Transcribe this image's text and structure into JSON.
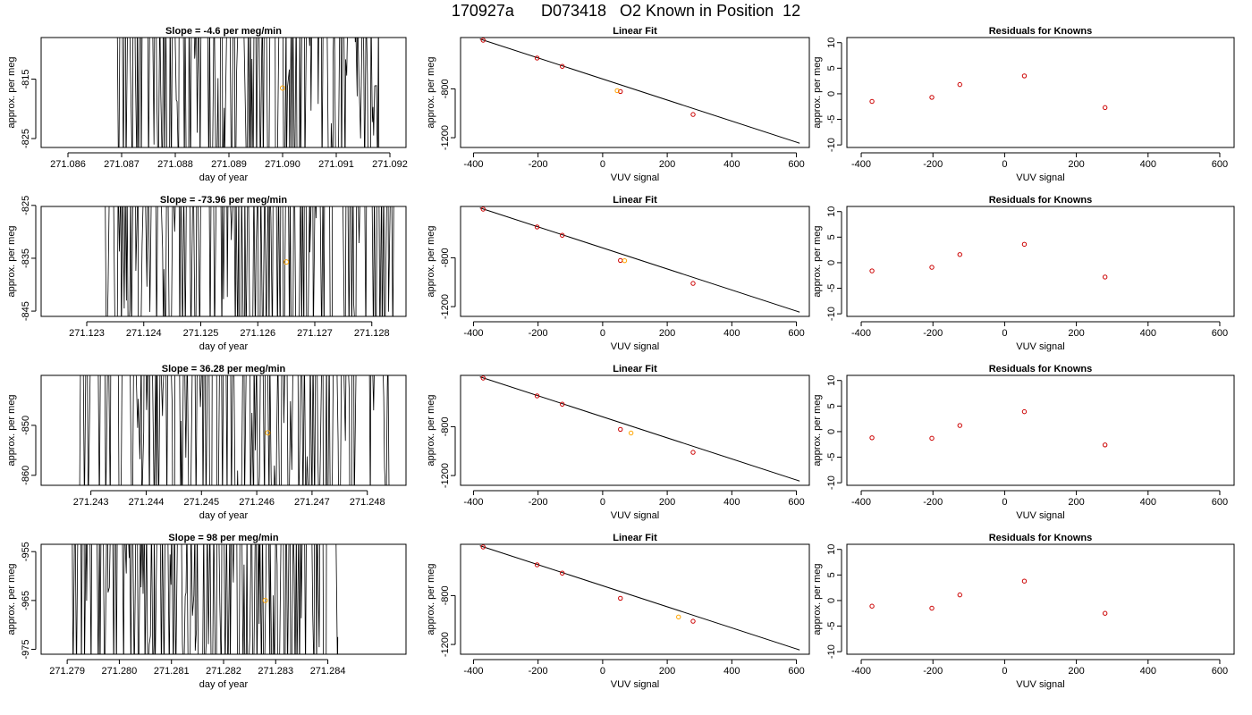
{
  "page_title": "170927a      D073418   O2 Known in Position  12",
  "chart_data": [
    {
      "type": "line",
      "title": "Slope =  -4.6  per meg/min",
      "xlabel": "day of year",
      "ylabel": "approx. per meg",
      "xlim": [
        271.0855,
        271.0923
      ],
      "ylim": [
        -826.5,
        -808
      ],
      "xticks": [
        271.086,
        271.087,
        271.088,
        271.089,
        271.09,
        271.091,
        271.092
      ],
      "xtick_labels": [
        "271.086",
        "271.087",
        "271.088",
        "271.089",
        "271.090",
        "271.091",
        "271.092"
      ],
      "yticks": [
        -815,
        -825
      ],
      "ytick_labels": [
        "-815",
        "-825"
      ],
      "trace_xrange": [
        271.0869,
        271.0918
      ],
      "trace_seed": 11,
      "marker": {
        "x": 271.09,
        "y": -816.5
      },
      "axes_color": "#000000",
      "line_color": "#000000",
      "marker_color": "#ffa500"
    },
    {
      "type": "scatter",
      "title": "Linear Fit",
      "xlabel": "VUV signal",
      "ylabel": "approx. per meg",
      "xlim": [
        -440,
        640
      ],
      "ylim": [
        -1280,
        -380
      ],
      "xticks": [
        -400,
        -200,
        0,
        200,
        400,
        600
      ],
      "xtick_labels": [
        "-400",
        "-200",
        "0",
        "200",
        "400",
        "600"
      ],
      "yticks": [
        -800,
        -1200
      ],
      "ytick_labels": [
        "-800",
        "-1200"
      ],
      "fit_line": {
        "x": [
          -380,
          610
        ],
        "y": [
          -392,
          -1245
        ]
      },
      "points": {
        "x": [
          -370,
          -203,
          -125,
          55,
          280
        ],
        "y": [
          -402,
          -548,
          -616,
          -822,
          -1010
        ]
      },
      "marker": {
        "x": 45,
        "y": -815
      },
      "line_color": "#000000",
      "point_color": "#cc0000",
      "marker_color": "#ffa500"
    },
    {
      "type": "scatter",
      "title": "Residuals for Knowns",
      "xlabel": "VUV signal",
      "ylabel": "approx. per meg",
      "xlim": [
        -440,
        640
      ],
      "ylim": [
        -10.5,
        11
      ],
      "xticks": [
        -400,
        -200,
        0,
        200,
        400,
        600
      ],
      "xtick_labels": [
        "-400",
        "-200",
        "0",
        "200",
        "400",
        "600"
      ],
      "yticks": [
        10,
        5,
        0,
        -5,
        -10
      ],
      "ytick_labels": [
        "10",
        "5",
        "0",
        "-5",
        "-10"
      ],
      "points": {
        "x": [
          -370,
          -203,
          -125,
          55,
          280
        ],
        "y": [
          -1.5,
          -0.7,
          1.8,
          3.5,
          -2.7
        ]
      },
      "point_color": "#cc0000"
    },
    {
      "type": "line",
      "title": "Slope =  -73.96  per meg/min",
      "xlabel": "day of year",
      "ylabel": "approx. per meg",
      "xlim": [
        271.1222,
        271.1286
      ],
      "ylim": [
        -846,
        -825.2
      ],
      "xticks": [
        271.123,
        271.124,
        271.125,
        271.126,
        271.127,
        271.128
      ],
      "xtick_labels": [
        "271.123",
        "271.124",
        "271.125",
        "271.126",
        "271.127",
        "271.128"
      ],
      "yticks": [
        -825,
        -835,
        -845
      ],
      "ytick_labels": [
        "-825",
        "-835",
        "-845"
      ],
      "trace_xrange": [
        271.1233,
        271.1284
      ],
      "trace_seed": 23,
      "marker": {
        "x": 271.1265,
        "y": -835.7
      },
      "axes_color": "#000000",
      "line_color": "#000000",
      "marker_color": "#ffa500"
    },
    {
      "type": "scatter",
      "title": "Linear Fit",
      "xlabel": "VUV signal",
      "ylabel": "approx. per meg",
      "xlim": [
        -440,
        640
      ],
      "ylim": [
        -1280,
        -380
      ],
      "xticks": [
        -400,
        -200,
        0,
        200,
        400,
        600
      ],
      "xtick_labels": [
        "-400",
        "-200",
        "0",
        "200",
        "400",
        "600"
      ],
      "yticks": [
        -800,
        -1200
      ],
      "ytick_labels": [
        "-800",
        "-1200"
      ],
      "fit_line": {
        "x": [
          -380,
          610
        ],
        "y": [
          -392,
          -1245
        ]
      },
      "points": {
        "x": [
          -370,
          -203,
          -125,
          55,
          280
        ],
        "y": [
          -402,
          -548,
          -616,
          -822,
          -1010
        ]
      },
      "marker": {
        "x": 68,
        "y": -824
      },
      "line_color": "#000000",
      "point_color": "#cc0000",
      "marker_color": "#ffa500"
    },
    {
      "type": "scatter",
      "title": "Residuals for Knowns",
      "xlabel": "VUV signal",
      "ylabel": "approx. per meg",
      "xlim": [
        -440,
        640
      ],
      "ylim": [
        -10.5,
        11
      ],
      "xticks": [
        -400,
        -200,
        0,
        200,
        400,
        600
      ],
      "xtick_labels": [
        "-400",
        "-200",
        "0",
        "200",
        "400",
        "600"
      ],
      "yticks": [
        10,
        5,
        0,
        -5,
        -10
      ],
      "ytick_labels": [
        "10",
        "5",
        "0",
        "-5",
        "-10"
      ],
      "points": {
        "x": [
          -370,
          -203,
          -125,
          55,
          280
        ],
        "y": [
          -1.6,
          -0.9,
          1.6,
          3.6,
          -2.8
        ]
      },
      "point_color": "#cc0000"
    },
    {
      "type": "line",
      "title": "Slope =  36.28  per meg/min",
      "xlabel": "day of year",
      "ylabel": "approx. per meg",
      "xlim": [
        271.2421,
        271.2487
      ],
      "ylim": [
        -862,
        -840
      ],
      "xticks": [
        271.243,
        271.244,
        271.245,
        271.246,
        271.247,
        271.248
      ],
      "xtick_labels": [
        "271.243",
        "271.244",
        "271.245",
        "271.246",
        "271.247",
        "271.248"
      ],
      "yticks": [
        -850,
        -860
      ],
      "ytick_labels": [
        "-850",
        "-860"
      ],
      "trace_xrange": [
        271.2428,
        271.2484
      ],
      "trace_seed": 37,
      "marker": {
        "x": 271.2462,
        "y": -851.5
      },
      "axes_color": "#000000",
      "line_color": "#000000",
      "marker_color": "#ffa500"
    },
    {
      "type": "scatter",
      "title": "Linear Fit",
      "xlabel": "VUV signal",
      "ylabel": "approx. per meg",
      "xlim": [
        -440,
        640
      ],
      "ylim": [
        -1280,
        -380
      ],
      "xticks": [
        -400,
        -200,
        0,
        200,
        400,
        600
      ],
      "xtick_labels": [
        "-400",
        "-200",
        "0",
        "200",
        "400",
        "600"
      ],
      "yticks": [
        -800,
        -1200
      ],
      "ytick_labels": [
        "-800",
        "-1200"
      ],
      "fit_line": {
        "x": [
          -380,
          610
        ],
        "y": [
          -392,
          -1245
        ]
      },
      "points": {
        "x": [
          -370,
          -203,
          -125,
          55,
          280
        ],
        "y": [
          -402,
          -548,
          -616,
          -822,
          -1010
        ]
      },
      "marker": {
        "x": 88,
        "y": -852
      },
      "line_color": "#000000",
      "point_color": "#cc0000",
      "marker_color": "#ffa500"
    },
    {
      "type": "scatter",
      "title": "Residuals for Knowns",
      "xlabel": "VUV signal",
      "ylabel": "approx. per meg",
      "xlim": [
        -440,
        640
      ],
      "ylim": [
        -10.5,
        11
      ],
      "xticks": [
        -400,
        -200,
        0,
        200,
        400,
        600
      ],
      "xtick_labels": [
        "-400",
        "-200",
        "0",
        "200",
        "400",
        "600"
      ],
      "yticks": [
        10,
        5,
        0,
        -5,
        -10
      ],
      "ytick_labels": [
        "10",
        "5",
        "0",
        "-5",
        "-10"
      ],
      "points": {
        "x": [
          -370,
          -203,
          -125,
          55,
          280
        ],
        "y": [
          -1.2,
          -1.3,
          1.2,
          3.9,
          -2.6
        ]
      },
      "point_color": "#cc0000"
    },
    {
      "type": "line",
      "title": "Slope =  98  per meg/min",
      "xlabel": "day of year",
      "ylabel": "approx. per meg",
      "xlim": [
        271.2785,
        271.2855
      ],
      "ylim": [
        -976,
        -953.5
      ],
      "xticks": [
        271.279,
        271.28,
        271.281,
        271.282,
        271.283,
        271.284
      ],
      "xtick_labels": [
        "271.279",
        "271.280",
        "271.281",
        "271.282",
        "271.283",
        "271.284"
      ],
      "yticks": [
        -955,
        -965,
        -975
      ],
      "ytick_labels": [
        "-955",
        "-965",
        "-975"
      ],
      "trace_xrange": [
        271.2791,
        271.2842
      ],
      "trace_seed": 53,
      "marker": {
        "x": 271.2828,
        "y": -965
      },
      "axes_color": "#000000",
      "line_color": "#000000",
      "marker_color": "#ffa500"
    },
    {
      "type": "scatter",
      "title": "Linear Fit",
      "xlabel": "VUV signal",
      "ylabel": "approx. per meg",
      "xlim": [
        -440,
        640
      ],
      "ylim": [
        -1280,
        -380
      ],
      "xticks": [
        -400,
        -200,
        0,
        200,
        400,
        600
      ],
      "xtick_labels": [
        "-400",
        "-200",
        "0",
        "200",
        "400",
        "600"
      ],
      "yticks": [
        -800,
        -1200
      ],
      "ytick_labels": [
        "-800",
        "-1200"
      ],
      "fit_line": {
        "x": [
          -380,
          610
        ],
        "y": [
          -392,
          -1245
        ]
      },
      "points": {
        "x": [
          -370,
          -203,
          -125,
          55,
          280
        ],
        "y": [
          -402,
          -548,
          -616,
          -822,
          -1010
        ]
      },
      "marker": {
        "x": 235,
        "y": -975
      },
      "line_color": "#000000",
      "point_color": "#cc0000",
      "marker_color": "#ffa500"
    },
    {
      "type": "scatter",
      "title": "Residuals for Knowns",
      "xlabel": "VUV signal",
      "ylabel": "approx. per meg",
      "xlim": [
        -440,
        640
      ],
      "ylim": [
        -10.5,
        11
      ],
      "xticks": [
        -400,
        -200,
        0,
        200,
        400,
        600
      ],
      "xtick_labels": [
        "-400",
        "-200",
        "0",
        "200",
        "400",
        "600"
      ],
      "yticks": [
        10,
        5,
        0,
        -5,
        -10
      ],
      "ytick_labels": [
        "10",
        "5",
        "0",
        "-5",
        "-10"
      ],
      "points": {
        "x": [
          -370,
          -203,
          -125,
          55,
          280
        ],
        "y": [
          -1.1,
          -1.5,
          1.1,
          3.8,
          -2.5
        ]
      },
      "point_color": "#cc0000"
    }
  ]
}
